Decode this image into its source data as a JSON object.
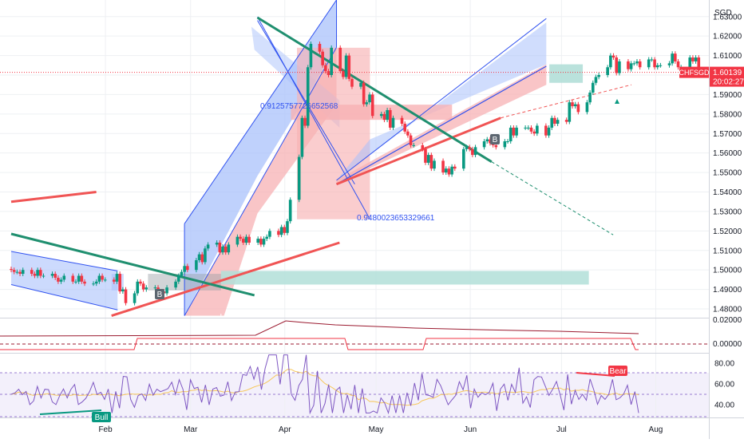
{
  "chart_data": {
    "type": "candlestick",
    "symbol": "CHFSGD",
    "currency": "SGD",
    "last_price": "1.60139",
    "countdown": "20:02:27",
    "price_ticks": [
      "1.63000",
      "1.62000",
      "1.61000",
      "1.60000",
      "1.59000",
      "1.58000",
      "1.57000",
      "1.56000",
      "1.55000",
      "1.54000",
      "1.53000",
      "1.52000",
      "1.51000",
      "1.50000",
      "1.49000",
      "1.48000"
    ],
    "price_ylim": [
      1.4755,
      1.6385
    ],
    "x_ticks": [
      "Feb",
      "Mar",
      "Apr",
      "May",
      "Jun",
      "Jul",
      "Aug"
    ],
    "x_tick_days": [
      31,
      59,
      90,
      120,
      151,
      181,
      212
    ],
    "x_range_days": [
      0,
      230
    ],
    "candle_closes": [
      1.5,
      1.499,
      1.499,
      1.498,
      1.5,
      1.498,
      1.497,
      1.5,
      1.497,
      1.497,
      1.498,
      1.496,
      1.494,
      1.495,
      1.497,
      1.494,
      1.494,
      1.497,
      1.494,
      1.493,
      1.493,
      1.494,
      1.497,
      1.495,
      1.495,
      1.494,
      1.498,
      1.489,
      1.49,
      1.483,
      1.488,
      1.494,
      1.493,
      1.49,
      1.491,
      1.491,
      1.487,
      1.489,
      1.488,
      1.491,
      1.494,
      1.497,
      1.499,
      1.502,
      1.5,
      1.505,
      1.508,
      1.504,
      1.511,
      1.513,
      1.514,
      1.509,
      1.512,
      1.509,
      1.513,
      1.517,
      1.516,
      1.514,
      1.517,
      1.514,
      1.516,
      1.513,
      1.516,
      1.517,
      1.52,
      1.518,
      1.522,
      1.519,
      1.525,
      1.536,
      1.558,
      1.578,
      1.574,
      1.604,
      1.616,
      1.612,
      1.605,
      1.602,
      1.6,
      1.614,
      1.602,
      1.599,
      1.61,
      1.598,
      1.594,
      1.596,
      1.585,
      1.586,
      1.59,
      1.579,
      1.58,
      1.577,
      1.582,
      1.573,
      1.578,
      1.575,
      1.571,
      1.569,
      1.564,
      1.564,
      1.562,
      1.555,
      1.559,
      1.552,
      1.556,
      1.55,
      1.552,
      1.549,
      1.553,
      1.552,
      1.562,
      1.563,
      1.562,
      1.559,
      1.563,
      1.566,
      1.567,
      1.565,
      1.564,
      1.563,
      1.566,
      1.566,
      1.573,
      1.569,
      1.573,
      1.573,
      1.573,
      1.571,
      1.57,
      1.574,
      1.569,
      1.573,
      1.578,
      1.575,
      1.577,
      1.576,
      1.586,
      1.584,
      1.585,
      1.581,
      1.586,
      1.591,
      1.596,
      1.599,
      1.6,
      1.604,
      1.61,
      1.609,
      1.601,
      1.607,
      1.603,
      1.606,
      1.606,
      1.607,
      1.604,
      1.608,
      1.608,
      1.604,
      1.605,
      1.605,
      1.606,
      1.611,
      1.607,
      1.604,
      1.604,
      1.609,
      1.607,
      1.609,
      1.601
    ],
    "candle_start_day": 0,
    "candle_step_days": 1.0,
    "bars_per_week": 5,
    "projection_labels": [
      "0.9125757726652568",
      "0.9480023653329661"
    ],
    "signals": [
      {
        "label": "B",
        "kind": "buy"
      },
      {
        "label": "B",
        "kind": "buy"
      },
      {
        "label": "Bull",
        "kind": "bull-divergence"
      },
      {
        "label": "Bear",
        "kind": "bear-divergence"
      }
    ],
    "indicator1": {
      "ticks": [
        "0.02000",
        "0.00000"
      ]
    },
    "rsi": {
      "ticks": [
        "80.00",
        "60.00",
        "40.00"
      ],
      "ylim": [
        30,
        90
      ]
    },
    "colors": {
      "up": "#089981",
      "down": "#f23645",
      "rsi": "#7e57c2",
      "rsi_ma": "#f7c85c",
      "trend_green": "#1f8f6f",
      "trend_red": "#f05454",
      "channel_blue": "#3052f0",
      "zone_red": "#f7b2b4",
      "zone_blue": "#aac1fb",
      "zone_teal": "#b2dfd8"
    }
  }
}
